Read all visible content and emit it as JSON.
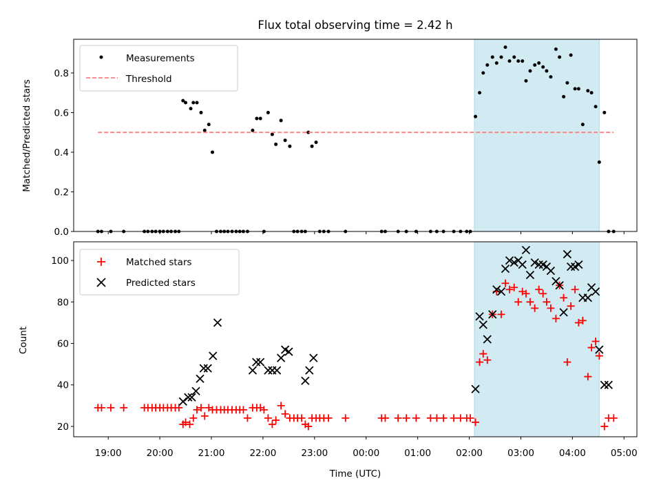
{
  "chart_data": [
    {
      "type": "scatter",
      "title": "Flux total observing time = 2.42 h",
      "ylabel": "Matched/Predicted stars",
      "xlabel": "",
      "ylim": [
        0,
        0.97
      ],
      "yticks": [
        "0.0",
        "0.2",
        "0.4",
        "0.6",
        "0.8"
      ],
      "grid": false,
      "legend_position": "upper-left",
      "highlight_span": {
        "x_start": 26.1,
        "x_end": 28.52,
        "color": "#add8e6"
      },
      "series": [
        {
          "name": "Measurements",
          "marker": "dot",
          "color": "#000000",
          "x": [
            18.8,
            18.87,
            19.05,
            19.3,
            19.7,
            19.77,
            19.85,
            19.92,
            20.0,
            20.07,
            20.15,
            20.22,
            20.3,
            20.37,
            20.45,
            20.5,
            20.6,
            20.65,
            20.72,
            20.8,
            20.87,
            20.95,
            21.02,
            21.1,
            21.18,
            21.25,
            21.32,
            21.4,
            21.48,
            21.55,
            21.62,
            21.7,
            21.8,
            21.88,
            21.95,
            22.02,
            22.1,
            22.18,
            22.25,
            22.35,
            22.43,
            22.52,
            22.6,
            22.67,
            22.75,
            22.82,
            22.88,
            22.95,
            23.03,
            23.1,
            23.18,
            23.27,
            23.6,
            24.3,
            24.37,
            24.62,
            24.78,
            24.97,
            25.25,
            25.37,
            25.5,
            25.7,
            25.83,
            25.95,
            26.02,
            26.12,
            26.2,
            26.27,
            26.35,
            26.45,
            26.53,
            26.62,
            26.7,
            26.78,
            26.87,
            26.95,
            27.03,
            27.1,
            27.18,
            27.27,
            27.35,
            27.43,
            27.5,
            27.58,
            27.68,
            27.75,
            27.83,
            27.9,
            27.97,
            28.05,
            28.12,
            28.2,
            28.3,
            28.37,
            28.45,
            28.52,
            28.62,
            28.7,
            28.8
          ],
          "y": [
            0,
            0,
            0,
            0,
            0,
            0,
            0,
            0,
            0,
            0,
            0,
            0,
            0,
            0,
            0.66,
            0.65,
            0.62,
            0.65,
            0.65,
            0.6,
            0.51,
            0.54,
            0.4,
            0,
            0,
            0,
            0,
            0,
            0,
            0,
            0,
            0,
            0.51,
            0.57,
            0.57,
            0,
            0.6,
            0.49,
            0.44,
            0.56,
            0.46,
            0.43,
            0,
            0,
            0,
            0,
            0.5,
            0.43,
            0.45,
            0,
            0,
            0,
            0,
            0,
            0,
            0,
            0,
            0,
            0,
            0,
            0,
            0,
            0,
            0,
            0,
            0.58,
            0.7,
            0.8,
            0.84,
            0.88,
            0.85,
            0.88,
            0.93,
            0.86,
            0.88,
            0.86,
            0.86,
            0.76,
            0.81,
            0.84,
            0.85,
            0.83,
            0.81,
            0.78,
            0.92,
            0.88,
            0.68,
            0.75,
            0.89,
            0.72,
            0.72,
            0.54,
            0.71,
            0.7,
            0.63,
            0.35,
            0.6,
            0,
            0
          ]
        },
        {
          "name": "Threshold",
          "style": "dashed",
          "color": "#ff7f7f",
          "x": [
            18.8,
            28.8
          ],
          "y": [
            0.5,
            0.5
          ]
        }
      ]
    },
    {
      "type": "scatter",
      "title": "",
      "ylabel": "Count",
      "xlabel": "Time (UTC)",
      "ylim": [
        15,
        109
      ],
      "yticks": [
        "20",
        "40",
        "60",
        "80",
        "100"
      ],
      "xlim": [
        18.33,
        29.25
      ],
      "xtick_values": [
        19,
        20,
        21,
        22,
        23,
        24,
        25,
        26,
        27,
        28,
        29
      ],
      "xticks": [
        "19:00",
        "20:00",
        "21:00",
        "22:00",
        "23:00",
        "00:00",
        "01:00",
        "02:00",
        "03:00",
        "04:00",
        "05:00"
      ],
      "grid": false,
      "legend_position": "upper-left",
      "highlight_span": {
        "x_start": 26.1,
        "x_end": 28.52,
        "color": "#add8e6"
      },
      "series": [
        {
          "name": "Matched stars",
          "marker": "plus",
          "color": "#ff0000",
          "x": [
            18.8,
            18.87,
            19.05,
            19.3,
            19.7,
            19.77,
            19.85,
            19.92,
            20.0,
            20.07,
            20.15,
            20.22,
            20.3,
            20.37,
            20.45,
            20.5,
            20.58,
            20.65,
            20.72,
            20.8,
            20.87,
            20.95,
            21.02,
            21.1,
            21.18,
            21.25,
            21.32,
            21.4,
            21.48,
            21.55,
            21.62,
            21.7,
            21.8,
            21.88,
            21.95,
            22.02,
            22.1,
            22.18,
            22.25,
            22.35,
            22.43,
            22.52,
            22.6,
            22.67,
            22.75,
            22.82,
            22.88,
            22.95,
            23.03,
            23.1,
            23.18,
            23.27,
            23.6,
            24.3,
            24.37,
            24.62,
            24.78,
            24.97,
            25.25,
            25.37,
            25.5,
            25.7,
            25.83,
            25.95,
            26.02,
            26.12,
            26.2,
            26.27,
            26.35,
            26.45,
            26.53,
            26.62,
            26.7,
            26.78,
            26.87,
            26.95,
            27.03,
            27.1,
            27.18,
            27.27,
            27.35,
            27.43,
            27.5,
            27.58,
            27.68,
            27.75,
            27.83,
            27.9,
            27.97,
            28.05,
            28.12,
            28.2,
            28.3,
            28.37,
            28.45,
            28.52,
            28.62,
            28.7,
            28.8
          ],
          "y": [
            29,
            29,
            29,
            29,
            29,
            29,
            29,
            29,
            29,
            29,
            29,
            29,
            29,
            29,
            21,
            22,
            21,
            24,
            28,
            29,
            25,
            29,
            28,
            28,
            28,
            28,
            28,
            28,
            28,
            28,
            28,
            24,
            29,
            29,
            29,
            28,
            24,
            21,
            23,
            30,
            26,
            24,
            24,
            24,
            24,
            21,
            20,
            24,
            24,
            24,
            24,
            24,
            24,
            24,
            24,
            24,
            24,
            24,
            24,
            24,
            24,
            24,
            24,
            24,
            24,
            22,
            51,
            55,
            52,
            74,
            85,
            74,
            89,
            86,
            87,
            80,
            85,
            84,
            80,
            77,
            86,
            84,
            80,
            77,
            72,
            88,
            82,
            51,
            78,
            86,
            70,
            71,
            44,
            58,
            61,
            54,
            20,
            24,
            24
          ]
        },
        {
          "name": "Predicted stars",
          "marker": "x",
          "color": "#000000",
          "x": [
            20.45,
            20.55,
            20.62,
            20.7,
            20.78,
            20.85,
            20.93,
            21.03,
            21.12,
            21.8,
            21.87,
            21.95,
            22.1,
            22.18,
            22.27,
            22.35,
            22.43,
            22.5,
            22.82,
            22.9,
            22.98,
            26.12,
            26.2,
            26.27,
            26.35,
            26.45,
            26.53,
            26.62,
            26.7,
            26.78,
            26.87,
            26.95,
            27.03,
            27.1,
            27.18,
            27.27,
            27.35,
            27.43,
            27.5,
            27.58,
            27.68,
            27.75,
            27.83,
            27.9,
            27.97,
            28.05,
            28.12,
            28.2,
            28.3,
            28.37,
            28.45,
            28.52,
            28.62,
            28.7
          ],
          "y": [
            32,
            34,
            34,
            37,
            43,
            48,
            48,
            54,
            70,
            47,
            51,
            51,
            47,
            47,
            47,
            53,
            57,
            56,
            42,
            47,
            53,
            38,
            73,
            69,
            62,
            74,
            86,
            85,
            96,
            100,
            99,
            100,
            98,
            105,
            93,
            99,
            98,
            98,
            97,
            95,
            90,
            88,
            75,
            103,
            97,
            97,
            98,
            82,
            82,
            87,
            85,
            57,
            40,
            40
          ]
        }
      ]
    }
  ]
}
